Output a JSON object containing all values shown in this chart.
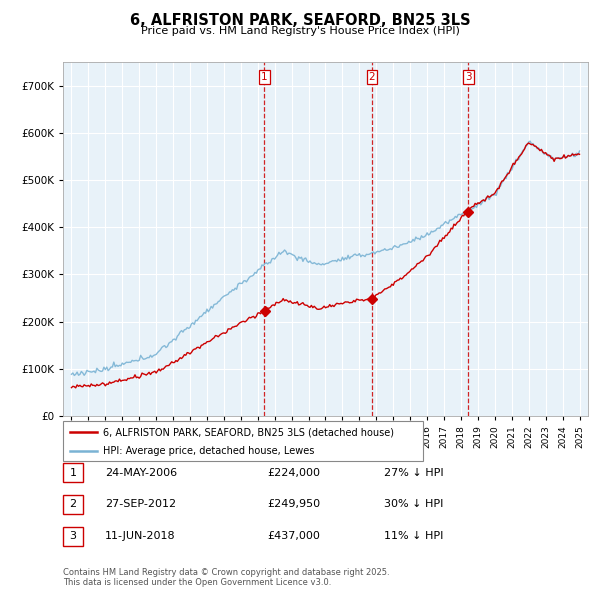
{
  "title": "6, ALFRISTON PARK, SEAFORD, BN25 3LS",
  "subtitle": "Price paid vs. HM Land Registry's House Price Index (HPI)",
  "hpi_color": "#7ab3d4",
  "price_color": "#cc0000",
  "vline_color": "#cc0000",
  "background_color": "#ffffff",
  "plot_bg_color": "#e8f2f9",
  "grid_color": "#ffffff",
  "sale_dates": [
    2006.39,
    2012.74,
    2018.44
  ],
  "sale_labels": [
    "1",
    "2",
    "3"
  ],
  "sale_prices": [
    224000,
    249950,
    437000
  ],
  "sale_info": [
    {
      "num": "1",
      "date": "24-MAY-2006",
      "price": "£224,000",
      "hpi": "27% ↓ HPI"
    },
    {
      "num": "2",
      "date": "27-SEP-2012",
      "price": "£249,950",
      "hpi": "30% ↓ HPI"
    },
    {
      "num": "3",
      "date": "11-JUN-2018",
      "price": "£437,000",
      "hpi": "11% ↓ HPI"
    }
  ],
  "legend_entries": [
    "6, ALFRISTON PARK, SEAFORD, BN25 3LS (detached house)",
    "HPI: Average price, detached house, Lewes"
  ],
  "footer": "Contains HM Land Registry data © Crown copyright and database right 2025.\nThis data is licensed under the Open Government Licence v3.0.",
  "ylim": [
    0,
    750000
  ],
  "yticks": [
    0,
    100000,
    200000,
    300000,
    400000,
    500000,
    600000,
    700000
  ],
  "xlim": [
    1994.5,
    2025.5
  ]
}
